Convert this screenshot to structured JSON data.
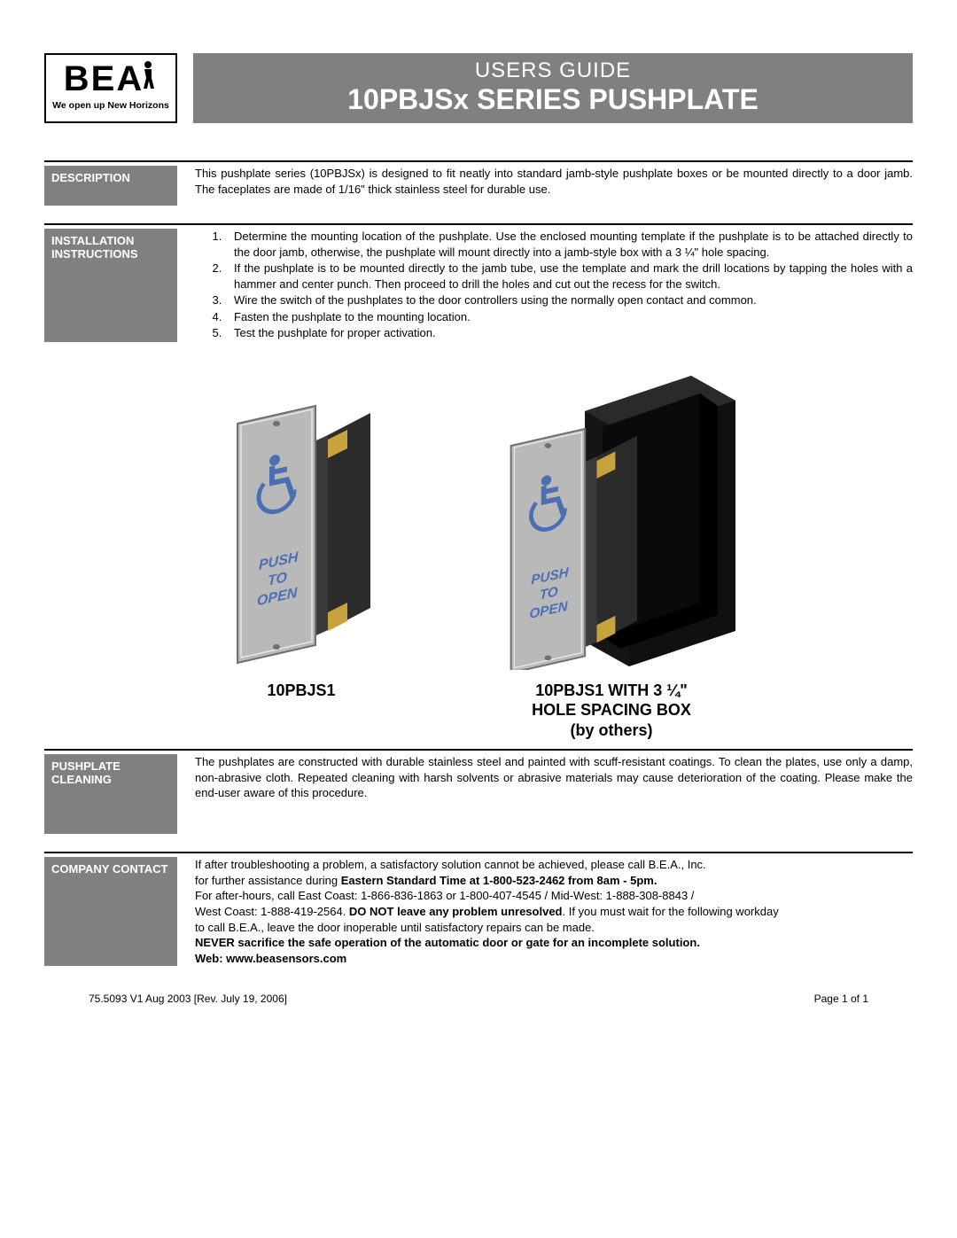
{
  "logo": {
    "brand": "BEA",
    "tagline": "We open up New Horizons"
  },
  "header": {
    "small": "USERS GUIDE",
    "big": "10PBJSx SERIES PUSHPLATE"
  },
  "colors": {
    "bar_bg": "#808080",
    "bar_fg": "#ffffff",
    "rule": "#000000",
    "text": "#000000",
    "plate_fill": "#b9b9b9",
    "plate_stroke": "#6e6e6e",
    "plate_highlight": "#e6e6e6",
    "button_fill": "#4a4a4a",
    "icon_blue": "#4a6fb3",
    "box_fill": "#1a1a1a",
    "box_shadow": "#000000",
    "tab_fill": "#c8a23c"
  },
  "sections": {
    "description": {
      "label": "DESCRIPTION",
      "text": "This pushplate series (10PBJSx) is designed to fit neatly into standard jamb-style pushplate boxes or be mounted directly to a door jamb.  The faceplates are made of 1/16\" thick stainless steel for durable use."
    },
    "installation": {
      "label": "INSTALLATION INSTRUCTIONS",
      "steps": [
        "Determine the mounting location of the pushplate.  Use the enclosed mounting template if the pushplate is to be attached directly to the door jamb, otherwise, the pushplate will mount directly into a jamb-style box with a 3 ¼\" hole spacing.",
        "If the pushplate is to be mounted directly to the jamb tube, use the template and mark the drill locations by tapping the holes with a hammer and center punch.  Then proceed to drill the holes and cut out the recess for the switch.",
        "Wire the switch of the pushplates to the door controllers using the normally open contact and common.",
        "Fasten the pushplate to the mounting location.",
        "Test the pushplate for proper activation."
      ]
    },
    "cleaning": {
      "label": "PUSHPLATE CLEANING",
      "text": "The pushplates are constructed with durable stainless steel and painted with scuff-resistant coatings.  To clean the plates, use only a damp, non-abrasive cloth.  Repeated cleaning with harsh solvents or abrasive materials may cause deterioration of the coating.  Please make the end-user aware of this procedure."
    },
    "contact": {
      "label": "COMPANY CONTACT",
      "l1": "If after troubleshooting a problem, a satisfactory solution cannot be achieved, please call B.E.A., Inc.",
      "l2a": "for further assistance during ",
      "l2b": "Eastern Standard Time at 1-800-523-2462 from 8am - 5pm.",
      "l3": "For after-hours, call East Coast: 1-866-836-1863 or 1-800-407-4545 / Mid-West: 1-888-308-8843 /",
      "l4a": "West Coast: 1-888-419-2564. ",
      "l4b": "DO NOT leave any problem unresolved",
      "l4c": ". If you must wait for the following workday",
      "l5": "to call B.E.A., leave the door inoperable until satisfactory repairs can be made.",
      "l6": "NEVER sacrifice the safe operation of the automatic door or gate for an incomplete solution.",
      "l7": "Web: www.beasensors.com"
    }
  },
  "figures": {
    "left_caption": "10PBJS1",
    "right_caption": "10PBJS1 WITH 3 ¼\"\nHOLE SPACING BOX\n(by others)",
    "plate_text_l1": "PUSH",
    "plate_text_l2": "TO",
    "plate_text_l3": "OPEN"
  },
  "footer": {
    "left": "75.5093 V1 Aug 2003 [Rev. July 19, 2006]",
    "right": "Page 1 of 1"
  }
}
